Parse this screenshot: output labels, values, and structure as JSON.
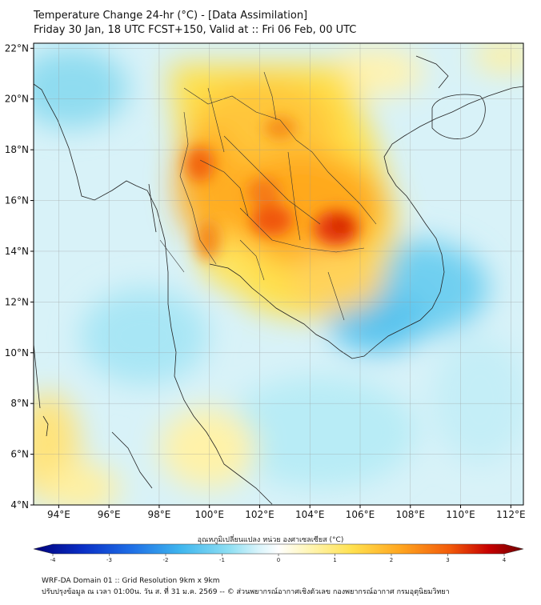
{
  "header": {
    "title_line1": "Temperature Change 24-hr (°C) - [Data Assimilation]",
    "title_line2": "Friday 30 Jan, 18 UTC FCST+150, Valid at :: Fri 06 Feb, 00 UTC"
  },
  "map": {
    "lon_range": [
      93,
      112.5
    ],
    "lat_range": [
      4,
      22.2
    ],
    "lat_labels": [
      {
        "lat": 22,
        "label": "22°N"
      },
      {
        "lat": 20,
        "label": "20°N"
      },
      {
        "lat": 18,
        "label": "18°N"
      },
      {
        "lat": 16,
        "label": "16°N"
      },
      {
        "lat": 14,
        "label": "14°N"
      },
      {
        "lat": 12,
        "label": "12°N"
      },
      {
        "lat": 10,
        "label": "10°N"
      },
      {
        "lat": 8,
        "label": "8°N"
      },
      {
        "lat": 6,
        "label": "6°N"
      },
      {
        "lat": 4,
        "label": "4°N"
      }
    ],
    "lon_labels": [
      {
        "lon": 94,
        "label": "94°E"
      },
      {
        "lon": 96,
        "label": "96°E"
      },
      {
        "lon": 98,
        "label": "98°E"
      },
      {
        "lon": 100,
        "label": "100°E"
      },
      {
        "lon": 102,
        "label": "102°E"
      },
      {
        "lon": 104,
        "label": "104°E"
      },
      {
        "lon": 106,
        "label": "106°E"
      },
      {
        "lon": 108,
        "label": "108°E"
      },
      {
        "lon": 110,
        "label": "110°E"
      },
      {
        "lon": 112,
        "label": "112°E"
      }
    ],
    "grid": true
  },
  "colorbar": {
    "label": "อุณหภูมิเปลี่ยนแปลง หน่วย องศาเซลเซียส (°C)",
    "min": -4,
    "max": 4,
    "ticks": [
      {
        "value": -4,
        "label": "-4"
      },
      {
        "value": -3,
        "label": "-3"
      },
      {
        "value": -2,
        "label": "-2"
      },
      {
        "value": -1,
        "label": "-1"
      },
      {
        "value": 0,
        "label": "0"
      },
      {
        "value": 1,
        "label": "1"
      },
      {
        "value": 2,
        "label": "2"
      },
      {
        "value": 3,
        "label": "3"
      },
      {
        "value": 4,
        "label": "4"
      }
    ],
    "colors": [
      "#00007a",
      "#0033cc",
      "#1e6fe6",
      "#3fb4ee",
      "#7fdcf2",
      "#d8f4fb",
      "#ffffff",
      "#fff5b0",
      "#ffd84a",
      "#ffa21f",
      "#f25a0a",
      "#c20000",
      "#6e0000"
    ]
  },
  "footer": {
    "line1": "WRF-DA Domain 01 :: Grid Resolution 9km x 9km",
    "line2": "ปรับปรุงข้อมูล ณ เวลา 01:00น. วัน ส. ที่ 31 ม.ค. 2569 -- © ส่วนพยากรณ์อากาศเชิงตัวเลข กองพยากรณ์อากาศ กรมอุตุนิยมวิทยา"
  }
}
